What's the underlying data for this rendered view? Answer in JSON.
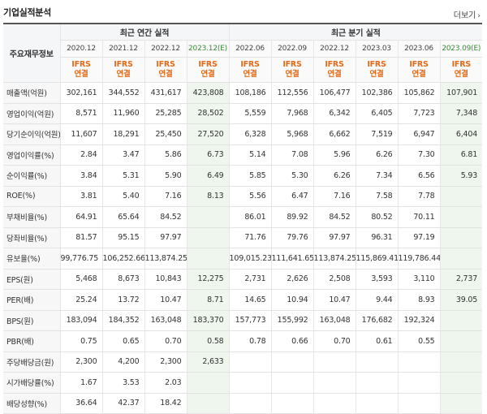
{
  "header": {
    "title": "기업실적분석",
    "more": "더보기"
  },
  "table": {
    "corner": "주요재무정보",
    "groups": {
      "annual": "최근 연간 실적",
      "quarterly": "최근 분기 실적"
    },
    "columns": [
      "2020.12",
      "2021.12",
      "2022.12",
      "2023.12(E)",
      "2022.06",
      "2022.09",
      "2022.12",
      "2023.03",
      "2023.06",
      "2023.09(E)"
    ],
    "ifrs": [
      "IFRS",
      "IFRS",
      "IFRS",
      "IFRS",
      "IFRS",
      "IFRS",
      "IFRS",
      "IFRS",
      "IFRS",
      "IFRS"
    ],
    "consol": [
      "연결",
      "연결",
      "연결",
      "연결",
      "연결",
      "연결",
      "연결",
      "연결",
      "연결",
      "연결"
    ],
    "rows": [
      {
        "label": "매출액(억원)",
        "cells": [
          "302,161",
          "344,552",
          "431,617",
          "423,808",
          "108,186",
          "112,556",
          "106,477",
          "102,386",
          "105,862",
          "107,901"
        ]
      },
      {
        "label": "영업이익(억원)",
        "cells": [
          "8,571",
          "11,960",
          "25,285",
          "28,502",
          "5,559",
          "7,968",
          "6,342",
          "6,405",
          "7,723",
          "7,348"
        ]
      },
      {
        "label": "당기순이익(억원)",
        "cells": [
          "11,607",
          "18,291",
          "25,450",
          "27,520",
          "6,328",
          "5,968",
          "6,662",
          "7,519",
          "6,947",
          "6,404"
        ]
      },
      {
        "label": "영업이익률(%)",
        "cells": [
          "2.84",
          "3.47",
          "5.86",
          "6.73",
          "5.14",
          "7.08",
          "5.96",
          "6.26",
          "7.30",
          "6.81"
        ]
      },
      {
        "label": "순이익률(%)",
        "cells": [
          "3.84",
          "5.31",
          "5.90",
          "6.49",
          "5.85",
          "5.30",
          "6.26",
          "7.34",
          "6.56",
          "5.93"
        ]
      },
      {
        "label": "ROE(%)",
        "cells": [
          "3.81",
          "5.40",
          "7.16",
          "8.13",
          "5.56",
          "6.47",
          "7.16",
          "7.58",
          "7.78",
          ""
        ]
      },
      {
        "label": "부채비율(%)",
        "cells": [
          "64.91",
          "65.64",
          "84.52",
          "",
          "86.01",
          "89.92",
          "84.52",
          "80.52",
          "70.11",
          ""
        ]
      },
      {
        "label": "당좌비율(%)",
        "cells": [
          "81.57",
          "95.15",
          "97.97",
          "",
          "71.76",
          "79.76",
          "97.97",
          "96.31",
          "97.19",
          ""
        ]
      },
      {
        "label": "유보율(%)",
        "cells": [
          "99,776.75",
          "106,252.66",
          "113,874.25",
          "",
          "109,015.23",
          "111,641.65",
          "113,874.25",
          "115,869.41",
          "119,786.44",
          ""
        ]
      },
      {
        "label": "EPS(원)",
        "cells": [
          "5,468",
          "8,673",
          "10,843",
          "12,275",
          "2,731",
          "2,626",
          "2,508",
          "3,593",
          "3,110",
          "2,737"
        ]
      },
      {
        "label": "PER(배)",
        "cells": [
          "25.24",
          "13.72",
          "10.47",
          "8.71",
          "14.65",
          "10.94",
          "10.47",
          "9.44",
          "8.93",
          "39.05"
        ]
      },
      {
        "label": "BPS(원)",
        "cells": [
          "183,094",
          "184,352",
          "163,048",
          "183,370",
          "157,773",
          "155,992",
          "163,048",
          "176,682",
          "192,324",
          ""
        ]
      },
      {
        "label": "PBR(배)",
        "cells": [
          "0.75",
          "0.65",
          "0.70",
          "0.58",
          "0.78",
          "0.66",
          "0.70",
          "0.61",
          "0.55",
          ""
        ]
      },
      {
        "label": "주당배당금(원)",
        "cells": [
          "2,300",
          "4,200",
          "2,300",
          "2,633",
          "",
          "",
          "",
          "",
          "",
          ""
        ]
      },
      {
        "label": "시가배당률(%)",
        "cells": [
          "1.67",
          "3.53",
          "2.03",
          "",
          "",
          "",
          "",
          "",
          "",
          ""
        ]
      },
      {
        "label": "배당성향(%)",
        "cells": [
          "36.64",
          "42.37",
          "18.42",
          "",
          "",
          "",
          "",
          "",
          "",
          ""
        ]
      }
    ]
  }
}
